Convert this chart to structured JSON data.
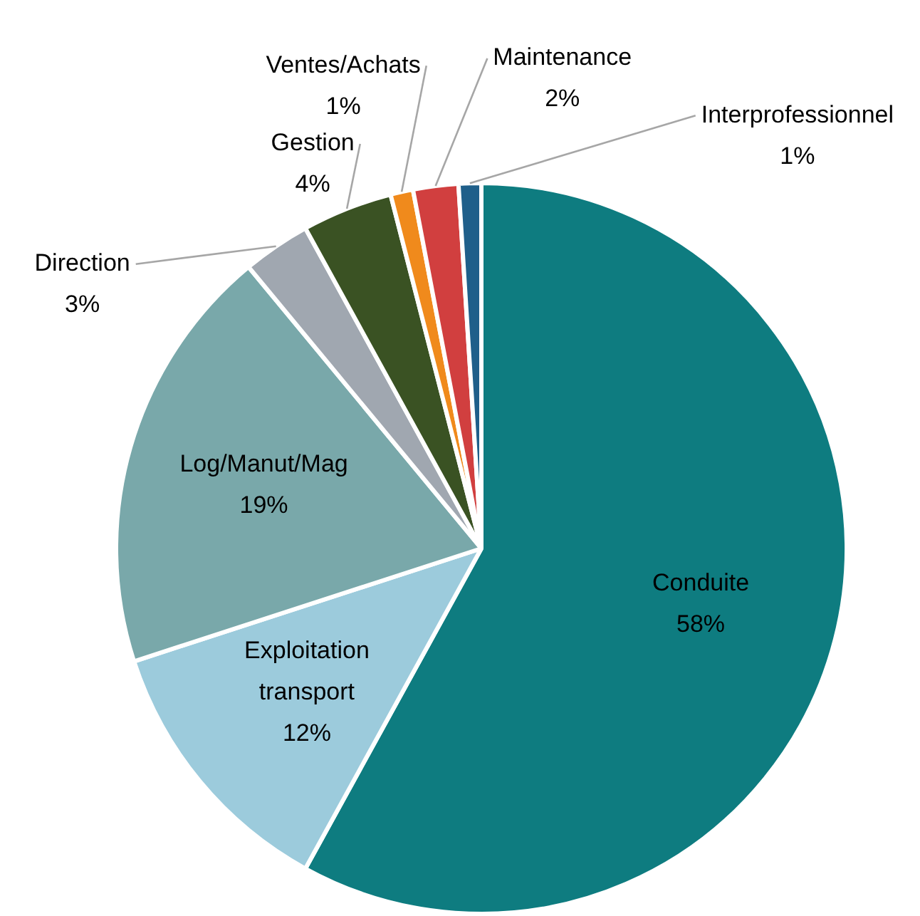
{
  "chart_data": {
    "type": "pie",
    "categories": [
      "Conduite",
      "Exploitation transport",
      "Log/Manut/Mag",
      "Direction",
      "Gestion",
      "Ventes/Achats",
      "Maintenance",
      "Interprofessionnel"
    ],
    "values": [
      58,
      12,
      19,
      3,
      4,
      1,
      2,
      1
    ],
    "value_labels": [
      "58%",
      "12%",
      "19%",
      "3%",
      "4%",
      "1%",
      "2%",
      "1%"
    ],
    "colors": [
      "#0e7c80",
      "#9ccbdc",
      "#79a8aa",
      "#a0a7b0",
      "#3a5223",
      "#f08a1c",
      "#d13f3f",
      "#1f5f8a"
    ],
    "legend": false
  }
}
